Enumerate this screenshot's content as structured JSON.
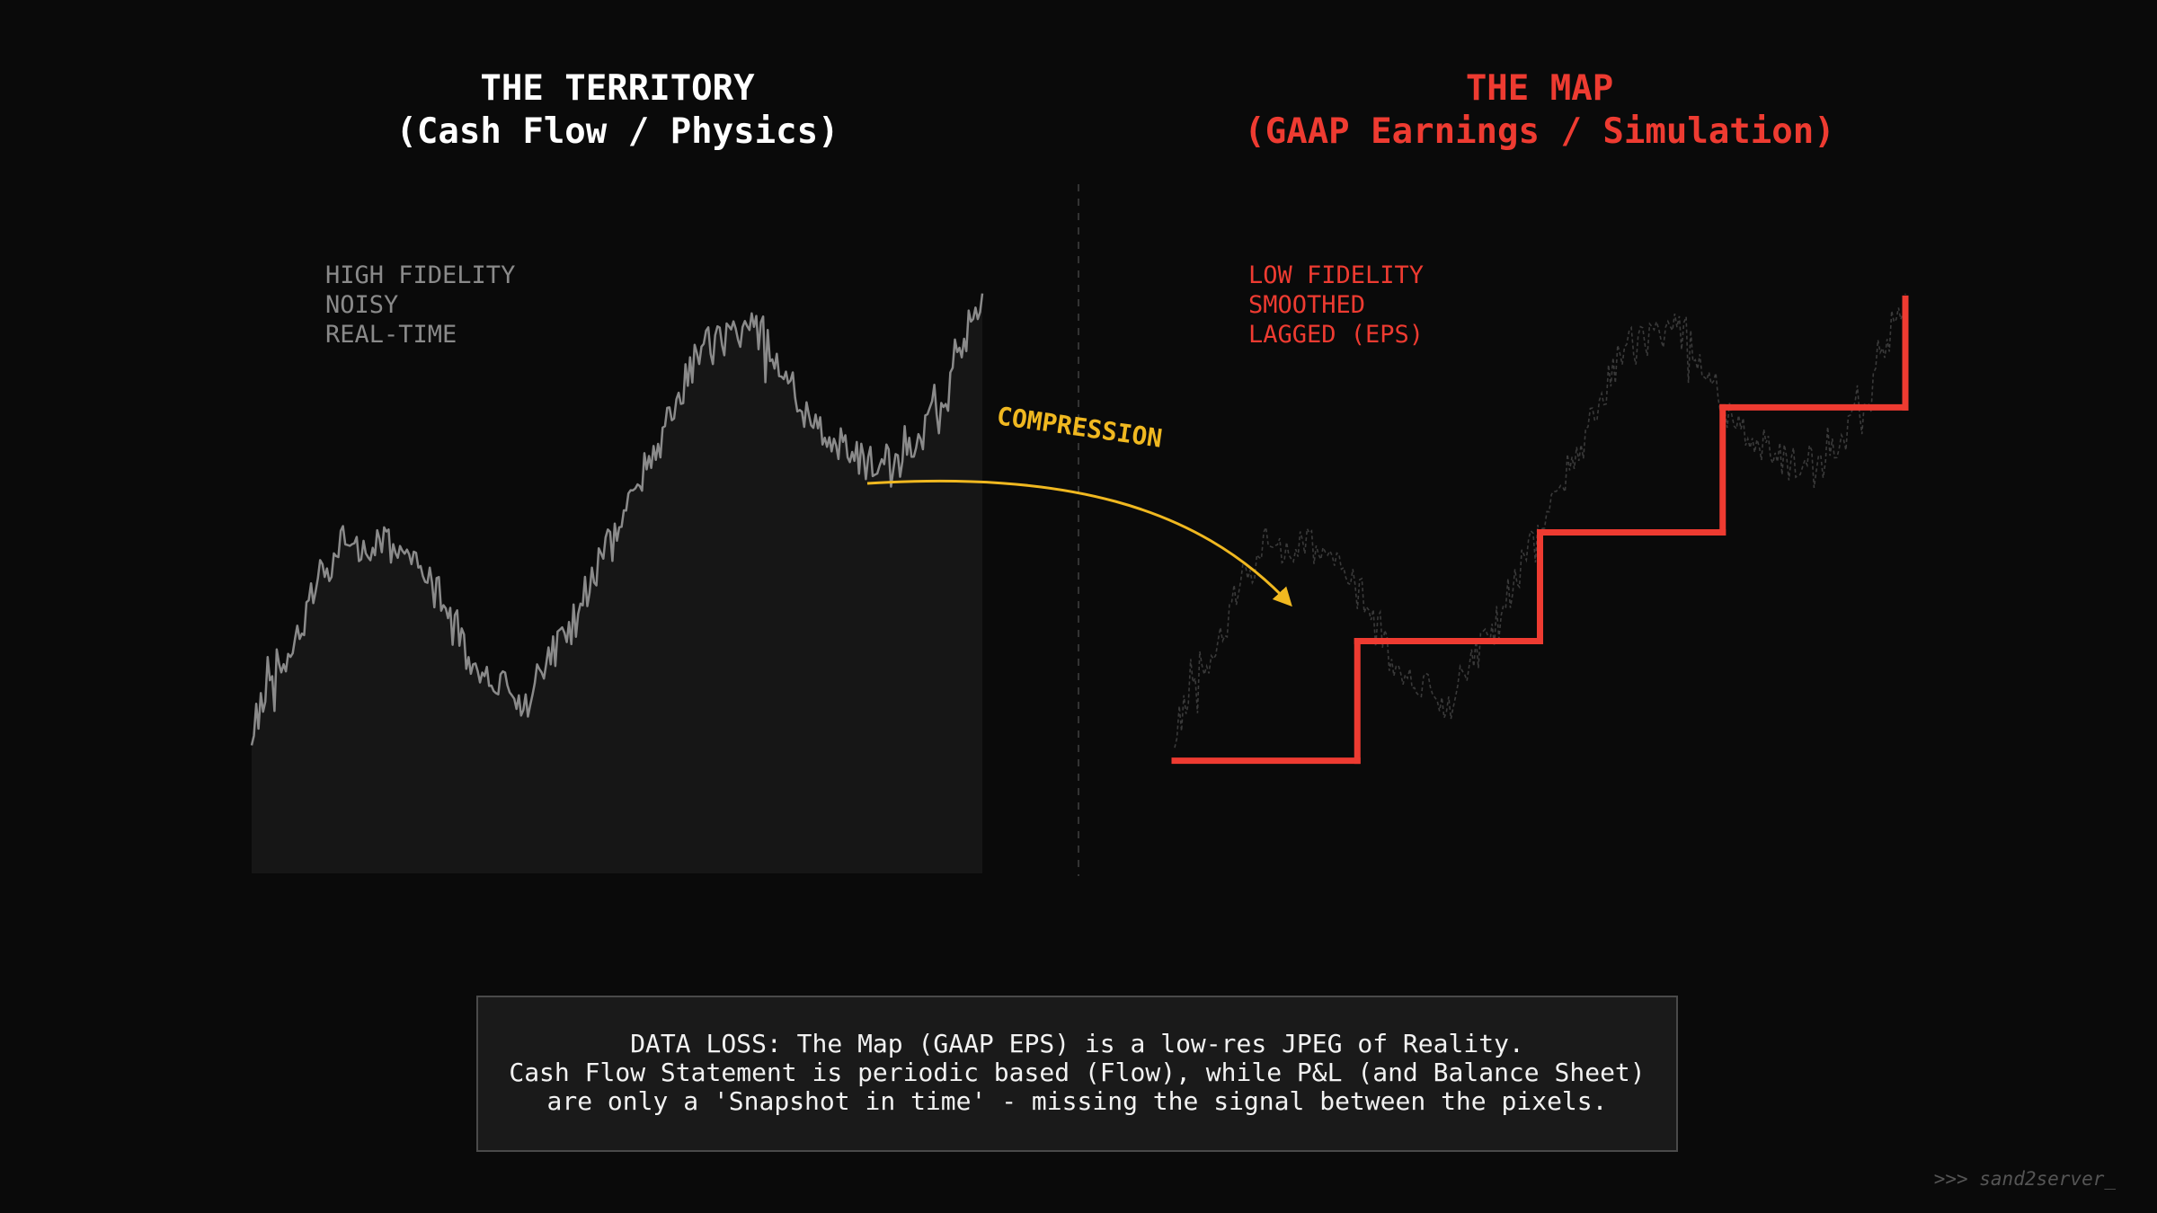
{
  "panels": {
    "territory": {
      "title": "THE TERRITORY",
      "subtitle": "(Cash Flow / Physics)",
      "labels": [
        "HIGH FIDELITY",
        "NOISY",
        "REAL-TIME"
      ]
    },
    "map": {
      "title": "THE MAP",
      "subtitle": "(GAAP Earnings / Simulation)",
      "labels": [
        "LOW FIDELITY",
        "SMOOTHED",
        "LAGGED (EPS)"
      ]
    }
  },
  "annotation": {
    "compression_label": "COMPRESSION"
  },
  "note": {
    "lines": [
      "DATA LOSS: The Map (GAAP EPS) is a low-res JPEG of Reality.",
      "Cash Flow Statement is periodic based (Flow), while P&L (and Balance Sheet)",
      "are only a 'Snapshot in time' - missing the signal between the pixels."
    ]
  },
  "signature": ">>> sand2server_",
  "colors": {
    "background": "#0a0a0a",
    "territory_line": "#8a8a8a",
    "territory_fill": "#161616",
    "map_line": "#ee3b31",
    "map_ghost": "#3a3a3a",
    "arrow": "#f0b820",
    "divider": "#333333"
  },
  "chart_data": [
    {
      "type": "line",
      "name": "territory",
      "x_range": [
        0,
        100
      ],
      "y_range": [
        0,
        1
      ],
      "anchors": [
        {
          "x": 0,
          "y": 0.12
        },
        {
          "x": 3,
          "y": 0.22
        },
        {
          "x": 6,
          "y": 0.28
        },
        {
          "x": 8,
          "y": 0.36
        },
        {
          "x": 10,
          "y": 0.42
        },
        {
          "x": 13,
          "y": 0.48
        },
        {
          "x": 16,
          "y": 0.45
        },
        {
          "x": 19,
          "y": 0.47
        },
        {
          "x": 22,
          "y": 0.44
        },
        {
          "x": 25,
          "y": 0.38
        },
        {
          "x": 28,
          "y": 0.3
        },
        {
          "x": 31,
          "y": 0.22
        },
        {
          "x": 34,
          "y": 0.2
        },
        {
          "x": 37,
          "y": 0.15
        },
        {
          "x": 40,
          "y": 0.24
        },
        {
          "x": 43,
          "y": 0.3
        },
        {
          "x": 46,
          "y": 0.38
        },
        {
          "x": 49,
          "y": 0.46
        },
        {
          "x": 52,
          "y": 0.56
        },
        {
          "x": 55,
          "y": 0.64
        },
        {
          "x": 58,
          "y": 0.72
        },
        {
          "x": 60,
          "y": 0.8
        },
        {
          "x": 62,
          "y": 0.84
        },
        {
          "x": 65,
          "y": 0.85
        },
        {
          "x": 68,
          "y": 0.87
        },
        {
          "x": 70,
          "y": 0.85
        },
        {
          "x": 72,
          "y": 0.81
        },
        {
          "x": 74,
          "y": 0.76
        },
        {
          "x": 76,
          "y": 0.71
        },
        {
          "x": 79,
          "y": 0.67
        },
        {
          "x": 82,
          "y": 0.64
        },
        {
          "x": 85,
          "y": 0.62
        },
        {
          "x": 88,
          "y": 0.63
        },
        {
          "x": 91,
          "y": 0.67
        },
        {
          "x": 94,
          "y": 0.73
        },
        {
          "x": 97,
          "y": 0.84
        },
        {
          "x": 100,
          "y": 0.94
        }
      ],
      "noise_amplitude": 0.035,
      "seed": 42
    },
    {
      "type": "line",
      "name": "map",
      "step": true,
      "x_range": [
        0,
        100
      ],
      "y_range": [
        0,
        1
      ],
      "steps": [
        {
          "x0": 0,
          "x1": 25,
          "y": 0.08
        },
        {
          "x0": 25,
          "x1": 50,
          "y": 0.3
        },
        {
          "x0": 50,
          "x1": 75,
          "y": 0.5
        },
        {
          "x0": 75,
          "x1": 100,
          "y": 0.73
        }
      ],
      "end_y": 0.93
    }
  ]
}
